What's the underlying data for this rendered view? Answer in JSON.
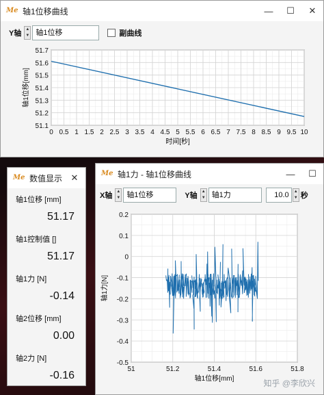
{
  "win1": {
    "title": "轴1位移曲线",
    "controls": [
      "—",
      "☐",
      "✕"
    ],
    "y_axis_label": "Y轴",
    "y_field": "轴1位移",
    "sub_curve_label": "副曲线",
    "chart_data": {
      "type": "line",
      "xlabel": "时间[秒]",
      "ylabel": "轴1位移[mm]",
      "xlim": [
        0,
        10
      ],
      "ylim": [
        51.1,
        51.7
      ],
      "xticks": [
        "0",
        "0.5",
        "1",
        "1.5",
        "2",
        "2.5",
        "3",
        "3.5",
        "4",
        "4.5",
        "5",
        "5.5",
        "6",
        "6.5",
        "7",
        "7.5",
        "8",
        "8.5",
        "9",
        "9.5",
        "10"
      ],
      "yticks": [
        "51.1",
        "51.2",
        "51.3",
        "51.4",
        "51.5",
        "51.6",
        "51.7"
      ],
      "series": [
        {
          "x": [
            0,
            10
          ],
          "y": [
            51.61,
            51.17
          ]
        }
      ],
      "grid": true,
      "color": "#1f6fae"
    }
  },
  "win2": {
    "title": "数值显示",
    "close": "✕",
    "channels": [
      {
        "label": "轴1位移 [mm]",
        "value": "51.17"
      },
      {
        "label": "轴1控制值 []",
        "value": "51.17"
      },
      {
        "label": "轴1力 [N]",
        "value": "-0.14"
      },
      {
        "label": "轴2位移 [mm]",
        "value": "0.00"
      },
      {
        "label": "轴2力 [N]",
        "value": "-0.16"
      }
    ]
  },
  "win3": {
    "title": "轴1力 - 轴1位移曲线",
    "controls": [
      "—",
      "☐"
    ],
    "x_axis_label": "X轴",
    "x_field": "轴1位移",
    "y_axis_label": "Y轴",
    "y_field": "轴1力",
    "time_value": "10.0",
    "time_unit": "秒",
    "chart_data": {
      "type": "line",
      "xlabel": "轴1位移[mm]",
      "ylabel": "轴1力[N]",
      "xlim": [
        51,
        51.8
      ],
      "ylim": [
        -0.5,
        0.2
      ],
      "xticks": [
        "51",
        "51.2",
        "51.4",
        "51.6",
        "51.8"
      ],
      "yticks": [
        "0.2",
        "0.1",
        "0",
        "-0.1",
        "-0.2",
        "-0.3",
        "-0.4",
        "-0.5"
      ],
      "x_range_of_trace": [
        51.17,
        51.61
      ],
      "y_range_of_trace": [
        -0.4,
        0.1
      ],
      "grid": true,
      "color": "#1f6fae"
    }
  },
  "watermark": "知乎 @李欣兴"
}
